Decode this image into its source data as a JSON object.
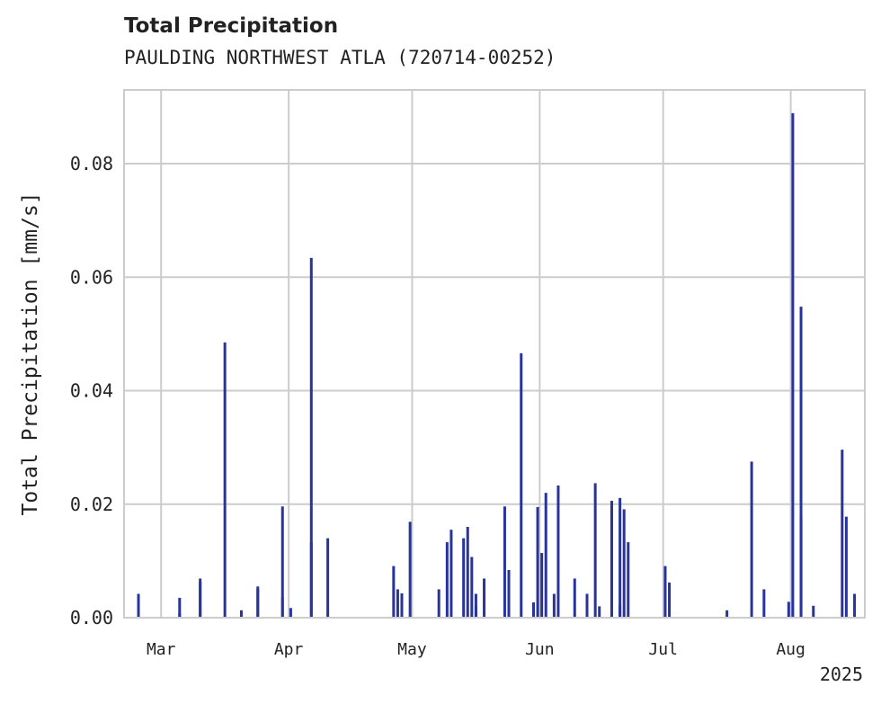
{
  "chart_data": {
    "type": "bar",
    "title": "Total Precipitation",
    "subtitle": "PAULDING NORTHWEST ATLA (720714-00252)",
    "ylabel": "Total Precipitation [mm/s]",
    "xlabel": "",
    "year_label": "2025",
    "xlim": [
      "2025-02-20",
      "2025-08-19"
    ],
    "ylim": [
      0,
      0.093
    ],
    "y_ticks": [
      {
        "value": 0.0,
        "label": "0.00"
      },
      {
        "value": 0.02,
        "label": "0.02"
      },
      {
        "value": 0.04,
        "label": "0.04"
      },
      {
        "value": 0.06,
        "label": "0.06"
      },
      {
        "value": 0.08,
        "label": "0.08"
      }
    ],
    "x_ticks": [
      {
        "date": "2025-03-01",
        "label": "Mar"
      },
      {
        "date": "2025-04-01",
        "label": "Apr"
      },
      {
        "date": "2025-05-01",
        "label": "May"
      },
      {
        "date": "2025-06-01",
        "label": "Jun"
      },
      {
        "date": "2025-07-01",
        "label": "Jul"
      },
      {
        "date": "2025-08-01",
        "label": "Aug"
      }
    ],
    "grid": true,
    "bar_color": "#28339c",
    "grid_color": "#cccccc",
    "series": [
      {
        "x": [
          "2025-02-23",
          "2025-03-05",
          "2025-03-05",
          "2025-03-10",
          "2025-03-10",
          "2025-03-16",
          "2025-03-20",
          "2025-03-24",
          "2025-03-24",
          "2025-03-30",
          "2025-03-30",
          "2025-04-01",
          "2025-04-06",
          "2025-04-06",
          "2025-04-10",
          "2025-04-26",
          "2025-04-27",
          "2025-04-28",
          "2025-04-30",
          "2025-05-07",
          "2025-05-09",
          "2025-05-10",
          "2025-05-13",
          "2025-05-14",
          "2025-05-15",
          "2025-05-16",
          "2025-05-16",
          "2025-05-18",
          "2025-05-23",
          "2025-05-24",
          "2025-05-27",
          "2025-05-30",
          "2025-05-31",
          "2025-06-01",
          "2025-06-02",
          "2025-06-04",
          "2025-06-05",
          "2025-06-09",
          "2025-06-12",
          "2025-06-14",
          "2025-06-15",
          "2025-06-18",
          "2025-06-20",
          "2025-06-20",
          "2025-06-21",
          "2025-06-22",
          "2025-07-01",
          "2025-07-02",
          "2025-07-16",
          "2025-07-22",
          "2025-07-25",
          "2025-07-31",
          "2025-08-01",
          "2025-08-03",
          "2025-08-03",
          "2025-08-06",
          "2025-08-13",
          "2025-08-14",
          "2025-08-16"
        ],
        "values": [
          0.0042,
          0.0035,
          0.0008,
          0.0069,
          0.0063,
          0.0485,
          0.0013,
          0.0051,
          0.0055,
          0.0036,
          0.0196,
          0.0017,
          0.0634,
          0.0133,
          0.014,
          0.0091,
          0.005,
          0.0043,
          0.0169,
          0.005,
          0.0133,
          0.0155,
          0.014,
          0.016,
          0.0107,
          0.0042,
          0.002,
          0.0069,
          0.0196,
          0.0084,
          0.0466,
          0.0027,
          0.0195,
          0.0114,
          0.022,
          0.0042,
          0.0233,
          0.0069,
          0.0042,
          0.0237,
          0.002,
          0.0206,
          0.0211,
          0.0023,
          0.0191,
          0.0133,
          0.0091,
          0.0062,
          0.0013,
          0.0275,
          0.005,
          0.0028,
          0.0889,
          0.0178,
          0.0548,
          0.0021,
          0.0296,
          0.0178,
          0.0042
        ]
      }
    ]
  }
}
